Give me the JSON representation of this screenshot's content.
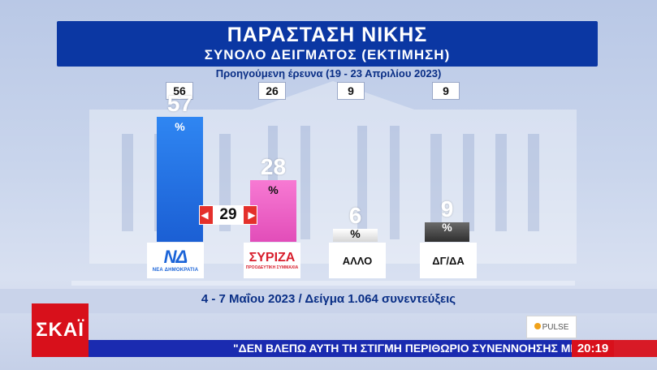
{
  "header": {
    "title": "ΠΑΡΑΣΤΑΣΗ ΝΙΚΗΣ",
    "subtitle": "ΣΥΝΟΛΟ ΔΕΙΓΜΑΤΟΣ (ΕΚΤΙΜΗΣΗ)"
  },
  "previous": {
    "title": "Προηγούμενη έρευνα (19 - 23 Απριλίου 2023)"
  },
  "chart_data": {
    "type": "bar",
    "categories": [
      "ΝΕΑ ΔΗΜΟΚΡΑΤΙΑ",
      "ΣΥΡΙΖΑ",
      "ΑΛΛΟ",
      "ΔΓ/ΔΑ"
    ],
    "values": [
      57,
      28,
      6,
      9
    ],
    "previous_values": [
      56,
      26,
      9,
      9
    ],
    "unit": "%",
    "ylim": [
      0,
      60
    ],
    "difference": {
      "between": [
        "ΝΕΑ ΔΗΜΟΚΡΑΤΙΑ",
        "ΣΥΡΙΖΑ"
      ],
      "value": 29
    },
    "colors": [
      "#1f6fe0",
      "#f05cc4",
      "#e8e8e8",
      "#4a4a4a"
    ]
  },
  "labels": {
    "nd_mark": "ΝΔ",
    "nd_sub": "ΝΕΑ ΔΗΜΟΚΡΑΤΙΑ",
    "syriza_mark": "ΣΥΡΙΖΑ",
    "syriza_sub": "ΠΡΟΟΔΕΥΤΙΚΗ ΣΥΜΜΑΧΙΑ",
    "allo": "ΑΛΛΟ",
    "dgda": "ΔΓ/ΔΑ"
  },
  "footer": {
    "sample": "4 - 7 Μαΐου 2023 / Δείγμα 1.064 συνεντεύξεις"
  },
  "broadcast": {
    "channel": "ΣΚΑΪ",
    "pollster": "PULSE",
    "ticker": "\"ΔΕΝ ΒΛΕΠΩ ΑΥΤΗ ΤΗ ΣΤΙΓΜΗ ΠΕΡΙΘΩΡΙΟ ΣΥΝΕΝΝΟΗΣΗΣ ΜΕ ΤΟ",
    "time": "20:19"
  }
}
